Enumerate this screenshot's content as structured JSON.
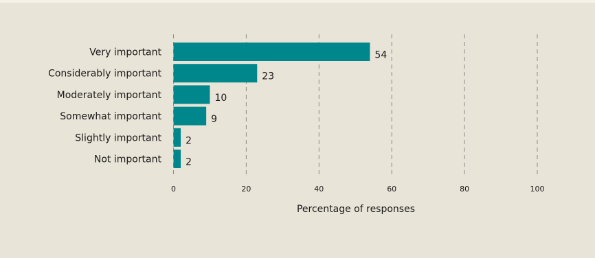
{
  "chart_data": {
    "type": "bar",
    "orientation": "horizontal",
    "categories": [
      "Very important",
      "Considerably important",
      "Moderately important",
      "Somewhat important",
      "Slightly important",
      "Not important"
    ],
    "values": [
      54,
      23,
      10,
      9,
      2,
      2
    ],
    "data_labels": [
      "54",
      "23",
      "10",
      "9",
      "2",
      "2"
    ],
    "xticks": [
      0,
      20,
      40,
      60,
      80,
      100
    ],
    "xlim": [
      0,
      100
    ],
    "xlabel": "Percentage of responses",
    "grid": "vertical dashed",
    "bar_color": "#00878c",
    "background_color": "#e9e4d8"
  }
}
